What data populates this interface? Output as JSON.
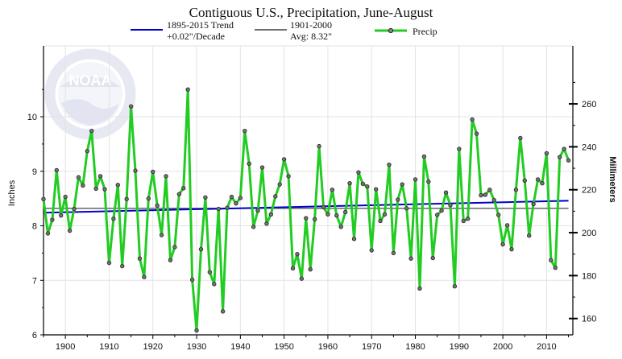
{
  "chart_data": {
    "type": "line",
    "title": "Contiguous U.S., Precipitation, June-August",
    "ylabel": "Inches",
    "y2label": "Millimeters",
    "xlim": [
      1895,
      2016
    ],
    "ylim": [
      6,
      11.3
    ],
    "x_ticks": [
      1900,
      1910,
      1920,
      1930,
      1940,
      1950,
      1960,
      1970,
      1980,
      1990,
      2000,
      2010
    ],
    "y_ticks": [
      6,
      7,
      8,
      9,
      10
    ],
    "y2_ticks": [
      160,
      180,
      200,
      220,
      240,
      260
    ],
    "grid": true,
    "watermark": "NOAA",
    "colors": {
      "precip": "#22cc22",
      "trend": "#0000cc",
      "average": "#707070",
      "marker": "#333333"
    },
    "series": [
      {
        "name": "Precip",
        "x": [
          1895,
          1896,
          1897,
          1898,
          1899,
          1900,
          1901,
          1902,
          1903,
          1904,
          1905,
          1906,
          1907,
          1908,
          1909,
          1910,
          1911,
          1912,
          1913,
          1914,
          1915,
          1916,
          1917,
          1918,
          1919,
          1920,
          1921,
          1922,
          1923,
          1924,
          1925,
          1926,
          1927,
          1928,
          1929,
          1930,
          1931,
          1932,
          1933,
          1934,
          1935,
          1936,
          1937,
          1938,
          1939,
          1940,
          1941,
          1942,
          1943,
          1944,
          1945,
          1946,
          1947,
          1948,
          1949,
          1950,
          1951,
          1952,
          1953,
          1954,
          1955,
          1956,
          1957,
          1958,
          1959,
          1960,
          1961,
          1962,
          1963,
          1964,
          1965,
          1966,
          1967,
          1968,
          1969,
          1970,
          1971,
          1972,
          1973,
          1974,
          1975,
          1976,
          1977,
          1978,
          1979,
          1980,
          1981,
          1982,
          1983,
          1984,
          1985,
          1986,
          1987,
          1988,
          1989,
          1990,
          1991,
          1992,
          1993,
          1994,
          1995,
          1996,
          1997,
          1998,
          1999,
          2000,
          2001,
          2002,
          2003,
          2004,
          2005,
          2006,
          2007,
          2008,
          2009,
          2010,
          2011,
          2012,
          2013,
          2014,
          2015
        ],
        "values": [
          8.49,
          7.86,
          8.11,
          9.02,
          8.19,
          8.53,
          7.91,
          8.31,
          8.89,
          8.74,
          9.37,
          9.74,
          8.68,
          8.91,
          8.67,
          7.32,
          8.13,
          8.75,
          7.26,
          8.49,
          10.19,
          9.01,
          7.4,
          7.06,
          8.5,
          8.99,
          8.37,
          7.83,
          8.91,
          7.37,
          7.61,
          8.58,
          8.69,
          10.5,
          7.01,
          6.08,
          7.57,
          8.52,
          7.15,
          6.93,
          8.31,
          6.43,
          8.33,
          8.53,
          8.41,
          8.51,
          9.74,
          9.14,
          7.98,
          8.28,
          9.07,
          8.04,
          8.21,
          8.54,
          8.76,
          9.22,
          8.91,
          7.22,
          7.48,
          7.03,
          8.14,
          7.2,
          8.12,
          9.46,
          8.34,
          8.21,
          8.66,
          8.19,
          7.98,
          8.25,
          8.78,
          7.76,
          8.98,
          8.77,
          8.72,
          7.55,
          8.67,
          8.09,
          8.21,
          9.12,
          7.5,
          8.48,
          8.76,
          8.32,
          7.4,
          8.85,
          6.85,
          9.27,
          8.81,
          7.41,
          8.2,
          8.28,
          8.61,
          8.38,
          6.89,
          9.41,
          8.09,
          8.13,
          9.95,
          9.69,
          8.56,
          8.57,
          8.66,
          8.47,
          8.2,
          7.66,
          8.01,
          7.57,
          8.66,
          9.61,
          8.83,
          7.82,
          8.4,
          8.85,
          8.78,
          9.33,
          7.37,
          7.23,
          9.26,
          9.41,
          9.2
        ]
      },
      {
        "name": "1895-2015 Trend",
        "label2": "+0.02\"/Decade",
        "x": [
          1895,
          2015
        ],
        "values": [
          8.24,
          8.46
        ]
      },
      {
        "name": "1901-2000",
        "label2": "Avg: 8.32\"",
        "x": [
          1895,
          2015
        ],
        "values": [
          8.32,
          8.32
        ]
      }
    ]
  }
}
